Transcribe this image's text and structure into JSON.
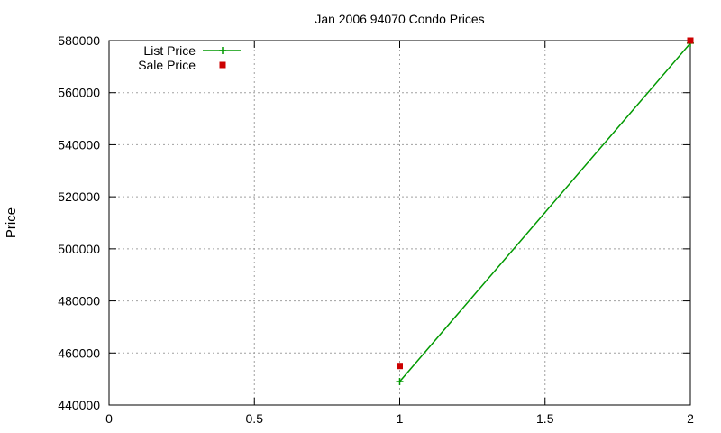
{
  "chart_data": {
    "type": "line",
    "title": "Jan 2006 94070 Condo Prices",
    "xlabel": "",
    "ylabel": "Price",
    "xlim": [
      0,
      2
    ],
    "ylim": [
      440000,
      580000
    ],
    "x_ticks": [
      0,
      0.5,
      1,
      1.5,
      2
    ],
    "x_tick_labels": [
      "0",
      "0.5",
      "1",
      "1.5",
      "2"
    ],
    "y_ticks": [
      440000,
      460000,
      480000,
      500000,
      520000,
      540000,
      560000,
      580000
    ],
    "y_tick_labels": [
      "440000",
      "460000",
      "480000",
      "500000",
      "520000",
      "540000",
      "560000",
      "580000"
    ],
    "grid": true,
    "legend_position": "top-left",
    "series": [
      {
        "name": "List Price",
        "style": "lines-points",
        "marker": "plus",
        "color": "#009900",
        "points": [
          [
            1,
            449000
          ],
          [
            2,
            579000
          ]
        ]
      },
      {
        "name": "Sale Price",
        "style": "points",
        "marker": "square",
        "color": "#cc0000",
        "points": [
          [
            1,
            455000
          ],
          [
            2,
            580000
          ]
        ]
      }
    ]
  }
}
